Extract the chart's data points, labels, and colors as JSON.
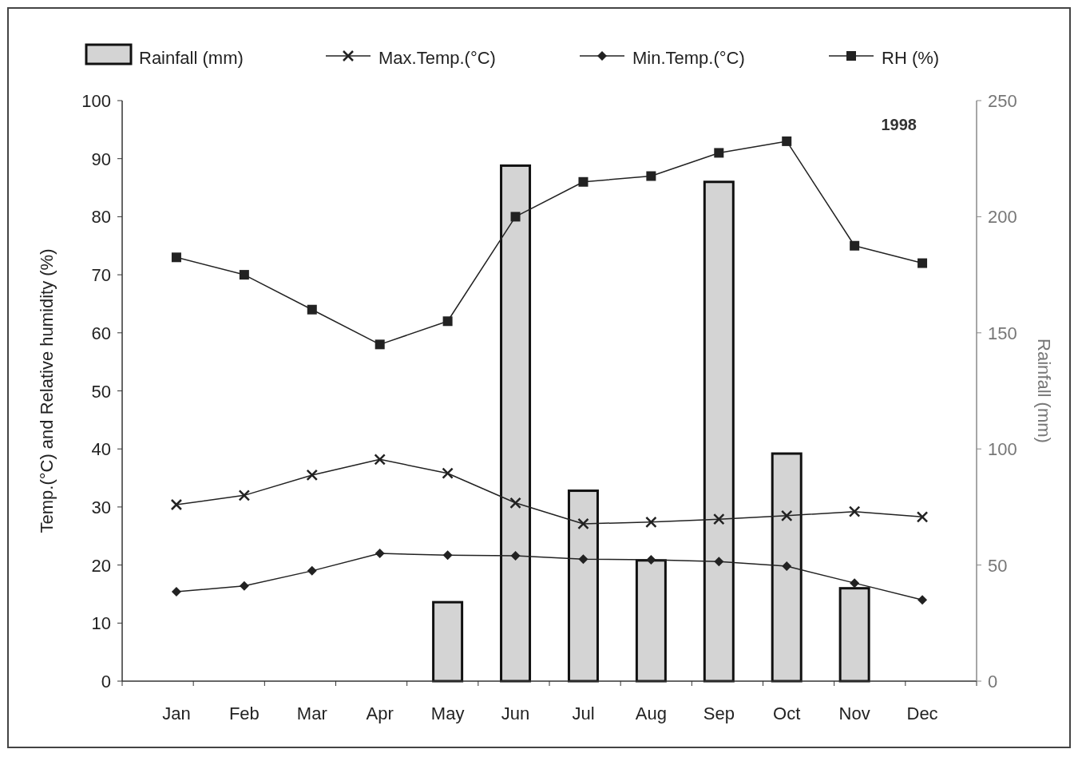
{
  "chart_data": {
    "type": "bar",
    "xlabel": null,
    "ylabel": "Temp.(°C) and Relative humidity (%)",
    "y2label": "Rainfall (mm)",
    "categories": [
      "Jan",
      "Feb",
      "Mar",
      "Apr",
      "May",
      "Jun",
      "Jul",
      "Aug",
      "Sep",
      "Oct",
      "Nov",
      "Dec"
    ],
    "series": [
      {
        "name": "Rainfall (mm)",
        "axis": "y2",
        "color": "#d4d4d4",
        "values": [
          0,
          0,
          0,
          0,
          34,
          222,
          82,
          52,
          215,
          98,
          40,
          0
        ]
      },
      {
        "name": "Max.Temp.(°C)",
        "type": "line",
        "marker": "cross",
        "color": "#222222",
        "values": [
          30.4,
          32,
          35.5,
          38.2,
          35.8,
          30.7,
          27.1,
          27.4,
          27.9,
          28.5,
          29.2,
          28.3
        ]
      },
      {
        "name": "Min.Temp.(°C)",
        "type": "line",
        "marker": "diamond",
        "color": "#222222",
        "values": [
          15.4,
          16.4,
          19,
          22,
          21.7,
          21.6,
          21,
          20.9,
          20.6,
          19.8,
          16.9,
          14
        ]
      },
      {
        "name": "RH (%)",
        "type": "line",
        "marker": "square",
        "color": "#222222",
        "values": [
          73,
          70,
          64,
          58,
          62,
          80,
          86,
          87,
          91,
          93,
          75,
          72
        ]
      }
    ],
    "ylim": [
      0,
      100
    ],
    "yticks": [
      0,
      10,
      20,
      30,
      40,
      50,
      60,
      70,
      80,
      90,
      100
    ],
    "y2lim": [
      0,
      250
    ],
    "y2ticks": [
      0,
      50,
      100,
      150,
      200,
      250
    ],
    "annotations": [
      "1998"
    ],
    "legend": "top",
    "grid": false
  }
}
